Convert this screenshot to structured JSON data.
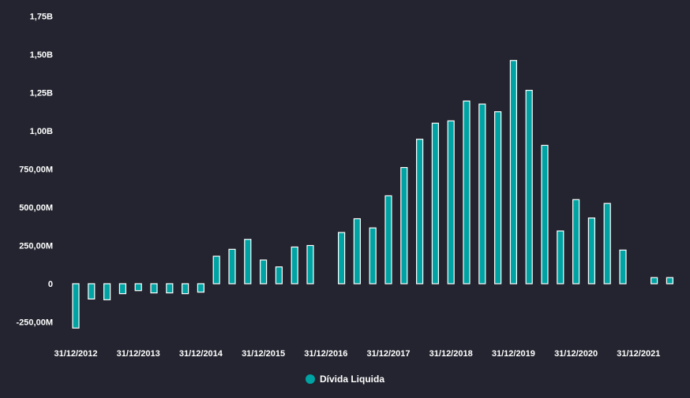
{
  "chart_data": {
    "type": "bar",
    "ylim": [
      -0.35,
      1.85
    ],
    "y_unit": "billions",
    "y_ticks": [
      {
        "value": 1.75,
        "label": "1,75B"
      },
      {
        "value": 1.5,
        "label": "1,50B"
      },
      {
        "value": 1.25,
        "label": "1,25B"
      },
      {
        "value": 1.0,
        "label": "1,00B"
      },
      {
        "value": 0.75,
        "label": "750,00M"
      },
      {
        "value": 0.5,
        "label": "500,00M"
      },
      {
        "value": 0.25,
        "label": "250,00M"
      },
      {
        "value": 0,
        "label": "0"
      },
      {
        "value": -0.25,
        "label": "-250,00M"
      }
    ],
    "x_ticks": [
      {
        "index": 0,
        "label": "31/12/2012"
      },
      {
        "index": 4,
        "label": "31/12/2013"
      },
      {
        "index": 8,
        "label": "31/12/2014"
      },
      {
        "index": 12,
        "label": "31/12/2015"
      },
      {
        "index": 16,
        "label": "31/12/2016"
      },
      {
        "index": 20,
        "label": "31/12/2017"
      },
      {
        "index": 24,
        "label": "31/12/2018"
      },
      {
        "index": 28,
        "label": "31/12/2019"
      },
      {
        "index": 32,
        "label": "31/12/2020"
      },
      {
        "index": 36,
        "label": "31/12/2021"
      }
    ],
    "series": [
      {
        "name": "Dívida Liquida",
        "color": "#00a3a3",
        "values": [
          -0.29,
          -0.1,
          -0.105,
          -0.065,
          -0.045,
          -0.06,
          -0.06,
          -0.065,
          -0.055,
          0.18,
          0.225,
          0.29,
          0.155,
          0.11,
          0.24,
          0.25,
          null,
          0.335,
          0.425,
          0.365,
          0.575,
          0.76,
          0.945,
          1.05,
          1.065,
          1.195,
          1.175,
          1.125,
          1.46,
          1.265,
          0.905,
          0.345,
          0.55,
          0.43,
          0.525,
          0.22,
          null,
          0.04,
          0.04
        ]
      }
    ],
    "grid": false,
    "legend": "bottom-center"
  }
}
